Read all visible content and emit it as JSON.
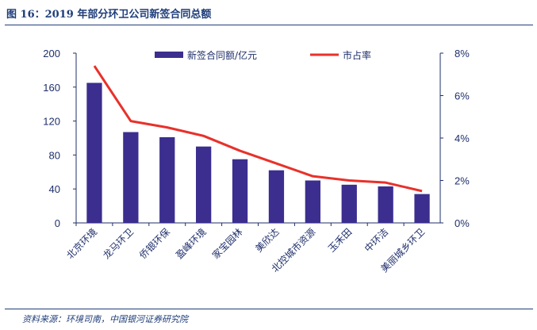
{
  "header": {
    "title": "图 16：2019 年部分环卫公司新签合同总额"
  },
  "footer": {
    "source": "资料来源：环境司南，中国银河证券研究院"
  },
  "chart_data": {
    "type": "bar",
    "categories": [
      "北京环境",
      "龙马环卫",
      "侨银环保",
      "盈峰环境",
      "家宝园林",
      "美欣达",
      "北控城市资源",
      "玉禾田",
      "中环洁",
      "美丽城乡环卫"
    ],
    "series": [
      {
        "name": "新签合同额/亿元",
        "type": "bar",
        "axis": "left",
        "color": "#3b2e8f",
        "values": [
          165,
          107,
          101,
          90,
          75,
          62,
          50,
          45,
          43,
          34
        ]
      },
      {
        "name": "市占率",
        "type": "line",
        "axis": "right",
        "color": "#e8312a",
        "values": [
          7.4,
          4.8,
          4.5,
          4.1,
          3.4,
          2.8,
          2.2,
          2.0,
          1.9,
          1.5
        ]
      }
    ],
    "ylim_left": [
      0,
      200
    ],
    "yticks_left": [
      "0",
      "40",
      "80",
      "120",
      "160",
      "200"
    ],
    "ylim_right": [
      0,
      8
    ],
    "yticks_right": [
      "0%",
      "2%",
      "4%",
      "6%",
      "8%"
    ],
    "grid": false,
    "legend_position": "top"
  }
}
